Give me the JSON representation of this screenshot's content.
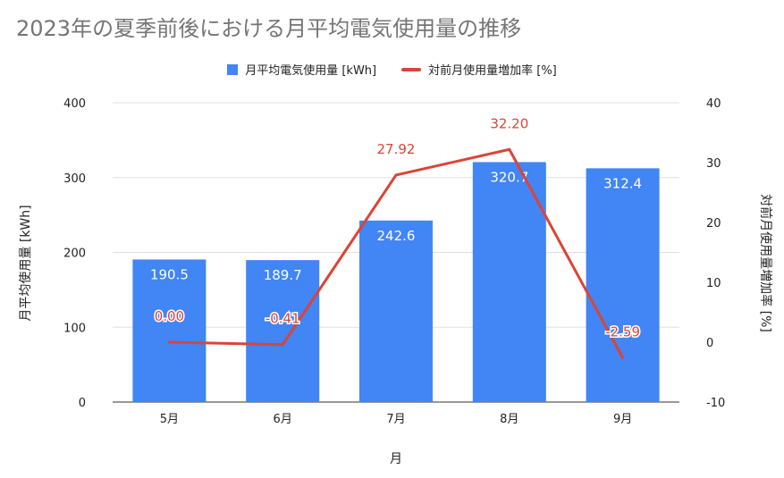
{
  "chart_data": {
    "type": "bar",
    "title": "2023年の夏季前後における月平均電気使用量の推移",
    "categories": [
      "5月",
      "6月",
      "7月",
      "8月",
      "9月"
    ],
    "xlabel": "月",
    "series": [
      {
        "name": "月平均電気使用量 [kWh]",
        "type": "bar",
        "axis": "left",
        "values": [
          190.5,
          189.7,
          242.6,
          320.7,
          312.4
        ],
        "labels": [
          "190.5",
          "189.7",
          "242.6",
          "320.7",
          "312.4"
        ]
      },
      {
        "name": "対前月使用量増加率 [%]",
        "type": "line",
        "axis": "right",
        "values": [
          0.0,
          -0.41,
          27.92,
          32.2,
          -2.59
        ],
        "labels": [
          "0.00",
          "-0.41",
          "27.92",
          "32.20",
          "-2.59"
        ]
      }
    ],
    "y_left": {
      "label": "月平均使用量 [kWh]",
      "ylim": [
        0,
        400
      ],
      "ticks": [
        "0",
        "100",
        "200",
        "300",
        "400"
      ],
      "tick_values": [
        0,
        100,
        200,
        300,
        400
      ]
    },
    "y_right": {
      "label": "対前月使用量増加率 [%]",
      "ylim": [
        -10,
        40
      ],
      "ticks": [
        "-10",
        "0",
        "10",
        "20",
        "30",
        "40"
      ],
      "tick_values": [
        -10,
        0,
        10,
        20,
        30,
        40
      ]
    },
    "grid": true,
    "legend_position": "top",
    "colors": {
      "bar": "#4285f4",
      "line": "#db4437",
      "grid": "#e0e0e0",
      "title": "#757575"
    }
  }
}
